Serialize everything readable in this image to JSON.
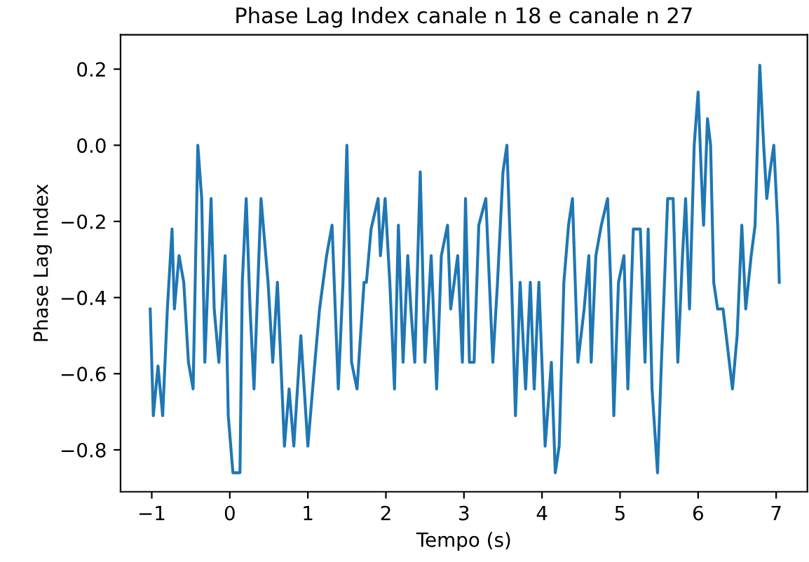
{
  "chart_data": {
    "type": "line",
    "title": "Phase Lag Index canale n 18 e canale n 27",
    "xlabel": "Tempo (s)",
    "ylabel": "Phase Lag Index",
    "xlim": [
      -1.4,
      7.4
    ],
    "ylim": [
      -0.91,
      0.29
    ],
    "xticks": [
      {
        "value": -1,
        "label": "−1"
      },
      0,
      1,
      2,
      3,
      4,
      5,
      6,
      7
    ],
    "yticks": [
      {
        "value": -0.8,
        "label": "−0.8"
      },
      {
        "value": -0.6,
        "label": "−0.6"
      },
      {
        "value": -0.4,
        "label": "−0.4"
      },
      {
        "value": -0.2,
        "label": "−0.2"
      },
      {
        "value": 0,
        "label": "0.0"
      },
      {
        "value": 0.2,
        "label": "0.2"
      }
    ],
    "grid": false,
    "series": [
      {
        "color": "#1f77b4",
        "x": [
          -1.02,
          -0.98,
          -0.92,
          -0.86,
          -0.8,
          -0.74,
          -0.71,
          -0.65,
          -0.59,
          -0.53,
          -0.47,
          -0.41,
          -0.36,
          -0.32,
          -0.24,
          -0.2,
          -0.14,
          -0.06,
          -0.02,
          0.04,
          0.13,
          0.16,
          0.21,
          0.26,
          0.31,
          0.4,
          0.49,
          0.55,
          0.61,
          0.7,
          0.76,
          0.82,
          0.91,
          1.0,
          1.09,
          1.15,
          1.24,
          1.31,
          1.39,
          1.45,
          1.5,
          1.56,
          1.63,
          1.72,
          1.75,
          1.81,
          1.9,
          1.93,
          1.99,
          2.05,
          2.11,
          2.16,
          2.22,
          2.28,
          2.32,
          2.37,
          2.44,
          2.5,
          2.58,
          2.65,
          2.71,
          2.79,
          2.83,
          2.92,
          2.98,
          3.02,
          3.07,
          3.13,
          3.19,
          3.28,
          3.37,
          3.43,
          3.5,
          3.55,
          3.61,
          3.66,
          3.72,
          3.79,
          3.85,
          3.9,
          3.96,
          4.04,
          4.12,
          4.17,
          4.22,
          4.28,
          4.34,
          4.39,
          4.46,
          4.54,
          4.6,
          4.63,
          4.69,
          4.76,
          4.84,
          4.88,
          4.92,
          4.98,
          5.05,
          5.1,
          5.17,
          5.26,
          5.32,
          5.36,
          5.41,
          5.48,
          5.53,
          5.61,
          5.68,
          5.74,
          5.8,
          5.84,
          5.89,
          5.95,
          6.0,
          6.04,
          6.07,
          6.12,
          6.16,
          6.2,
          6.25,
          6.32,
          6.4,
          6.44,
          6.5,
          6.56,
          6.61,
          6.68,
          6.73,
          6.79,
          6.84,
          6.88,
          6.92,
          6.97,
          7.02,
          7.04
        ],
        "values": [
          -0.43,
          -0.71,
          -0.58,
          -0.71,
          -0.43,
          -0.22,
          -0.43,
          -0.29,
          -0.36,
          -0.57,
          -0.64,
          0.0,
          -0.14,
          -0.57,
          -0.14,
          -0.43,
          -0.57,
          -0.29,
          -0.71,
          -0.86,
          -0.86,
          -0.36,
          -0.14,
          -0.43,
          -0.64,
          -0.14,
          -0.36,
          -0.57,
          -0.36,
          -0.79,
          -0.64,
          -0.79,
          -0.5,
          -0.79,
          -0.57,
          -0.43,
          -0.29,
          -0.21,
          -0.64,
          -0.36,
          0.0,
          -0.57,
          -0.64,
          -0.36,
          -0.36,
          -0.22,
          -0.14,
          -0.29,
          -0.14,
          -0.36,
          -0.64,
          -0.21,
          -0.57,
          -0.29,
          -0.43,
          -0.57,
          -0.07,
          -0.57,
          -0.29,
          -0.64,
          -0.29,
          -0.21,
          -0.43,
          -0.29,
          -0.57,
          -0.14,
          -0.57,
          -0.57,
          -0.21,
          -0.14,
          -0.57,
          -0.36,
          -0.07,
          0.0,
          -0.36,
          -0.71,
          -0.36,
          -0.64,
          -0.36,
          -0.64,
          -0.36,
          -0.79,
          -0.57,
          -0.86,
          -0.79,
          -0.36,
          -0.21,
          -0.14,
          -0.57,
          -0.43,
          -0.29,
          -0.57,
          -0.29,
          -0.21,
          -0.14,
          -0.36,
          -0.71,
          -0.36,
          -0.29,
          -0.64,
          -0.22,
          -0.22,
          -0.57,
          -0.22,
          -0.64,
          -0.86,
          -0.57,
          -0.14,
          -0.14,
          -0.57,
          -0.29,
          -0.14,
          -0.43,
          0.0,
          0.14,
          -0.07,
          -0.21,
          0.07,
          0.0,
          -0.36,
          -0.43,
          -0.43,
          -0.57,
          -0.64,
          -0.5,
          -0.21,
          -0.43,
          -0.29,
          -0.21,
          0.21,
          0.0,
          -0.14,
          -0.07,
          0.0,
          -0.21,
          -0.36
        ]
      }
    ]
  }
}
